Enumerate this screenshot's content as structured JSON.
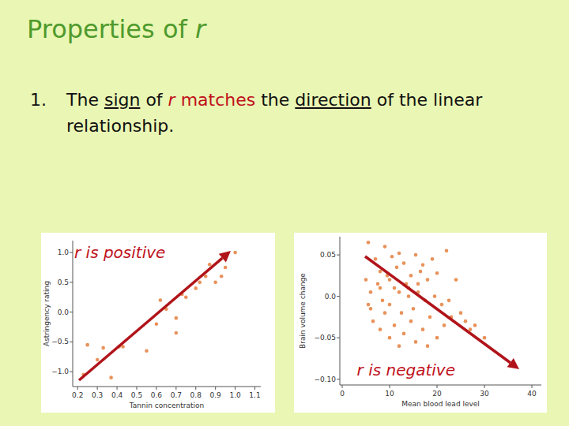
{
  "slide": {
    "title_parts": [
      "Properties of ",
      "r"
    ],
    "bullet": {
      "number": "1.",
      "parts": [
        "The ",
        "sign",
        " of ",
        "r",
        " ",
        "matches",
        " the ",
        "direction",
        " of the linear relationship."
      ]
    }
  },
  "chart_data": [
    {
      "type": "scatter",
      "annotation": "r is positive",
      "x_label": "Tannin concentration",
      "y_label": "Astringency rating",
      "color": "#e8925a",
      "xlim": [
        0.175,
        1.13
      ],
      "ylim": [
        -1.25,
        1.2
      ],
      "xticks": [
        0.2,
        0.3,
        0.4,
        0.5,
        0.6,
        0.7,
        0.8,
        0.9,
        {
          "value": 1,
          "label": "1.0"
        },
        1.1
      ],
      "yticks": [
        {
          "value": -1,
          "label": "−1.0"
        },
        {
          "value": -0.5,
          "label": "−0.5"
        },
        {
          "value": 0,
          "label": "0.0"
        },
        {
          "value": 0.5,
          "label": "0.5"
        },
        {
          "value": 1,
          "label": "1.0"
        }
      ],
      "x": [
        0.23,
        0.25,
        0.3,
        0.33,
        0.37,
        0.41,
        0.43,
        0.55,
        0.6,
        0.62,
        0.65,
        0.7,
        0.7,
        0.73,
        0.75,
        0.8,
        0.82,
        0.85,
        0.87,
        0.9,
        0.93,
        0.95,
        1.0
      ],
      "values": [
        -1.05,
        -0.55,
        -0.8,
        -0.6,
        -1.1,
        -0.58,
        -0.58,
        -0.65,
        -0.2,
        0.2,
        0.05,
        -0.35,
        -0.1,
        0.3,
        0.25,
        0.4,
        0.5,
        0.6,
        0.8,
        0.5,
        0.6,
        0.75,
        1.0
      ]
    },
    {
      "type": "scatter",
      "annotation": "r is negative",
      "x_label": "Mean blood lead level",
      "y_label": "Brain volume change",
      "color": "#e8925a",
      "xlim": [
        -0.5,
        42
      ],
      "ylim": [
        -0.107,
        0.072
      ],
      "xticks": [
        0,
        10,
        20,
        30,
        40
      ],
      "yticks": [
        {
          "value": -0.1,
          "label": "−0.10"
        },
        {
          "value": -0.05,
          "label": "−0.05"
        },
        {
          "value": 0,
          "label": "0.0"
        },
        0.05
      ],
      "x": [
        5.5,
        7,
        8,
        9,
        10.5,
        12,
        13,
        15.5,
        17,
        19,
        22,
        24,
        5,
        6,
        7.5,
        8.5,
        9.5,
        10,
        11,
        11.5,
        12.5,
        13.5,
        14,
        14.5,
        15,
        16,
        16.5,
        17.5,
        18,
        18.5,
        19.5,
        20,
        21,
        21.5,
        22.5,
        23,
        25,
        26,
        27,
        28,
        30,
        5.5,
        6.5,
        8,
        9,
        10,
        11,
        12,
        13,
        14.5,
        15.5,
        17,
        18,
        20,
        12,
        14,
        16,
        10,
        8,
        6
      ],
      "values": [
        0.065,
        0.045,
        0.03,
        0.06,
        0.048,
        0.052,
        0.04,
        0.05,
        0.038,
        0.045,
        0.055,
        0.02,
        0.02,
        0.005,
        0.015,
        -0.005,
        0.025,
        -0.01,
        0.01,
        0.035,
        -0.02,
        0.015,
        0,
        0.025,
        -0.015,
        0.005,
        0.03,
        -0.005,
        0.02,
        -0.025,
        0,
        0.028,
        -0.01,
        -0.035,
        -0.005,
        -0.025,
        -0.02,
        -0.03,
        -0.04,
        -0.035,
        -0.05,
        -0.01,
        -0.03,
        -0.04,
        -0.02,
        -0.05,
        -0.035,
        -0.06,
        -0.045,
        -0.03,
        -0.055,
        -0.04,
        -0.06,
        -0.05,
        0.005,
        0.01,
        0.015,
        0.02,
        0.01,
        -0.015
      ]
    }
  ]
}
